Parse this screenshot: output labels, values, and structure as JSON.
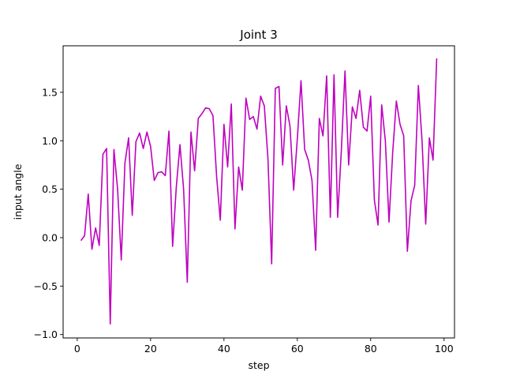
{
  "chart_data": {
    "type": "line",
    "title": "Joint 3",
    "xlabel": "step",
    "ylabel": "input angle",
    "xlim": [
      -3.85,
      102.85
    ],
    "ylim": [
      -1.035,
      1.98
    ],
    "xticks": [
      0,
      20,
      40,
      60,
      80,
      100
    ],
    "yticks": [
      -1.0,
      -0.5,
      0.0,
      0.5,
      1.0,
      1.5
    ],
    "ytick_labels": [
      "−1.0",
      "−0.5",
      "0.0",
      "0.5",
      "1.0",
      "1.5"
    ],
    "grid": false,
    "series": [
      {
        "color": "#bf00bf",
        "x": [
          1,
          2,
          3,
          4,
          5,
          6,
          7,
          8,
          9,
          10,
          11,
          12,
          13,
          14,
          15,
          16,
          17,
          18,
          19,
          20,
          21,
          22,
          23,
          24,
          25,
          26,
          27,
          28,
          29,
          30,
          31,
          32,
          33,
          34,
          35,
          36,
          37,
          38,
          39,
          40,
          41,
          42,
          43,
          44,
          45,
          46,
          47,
          48,
          49,
          50,
          51,
          52,
          53,
          54,
          55,
          56,
          57,
          58,
          59,
          60,
          61,
          62,
          63,
          64,
          65,
          66,
          67,
          68,
          69,
          70,
          71,
          72,
          73,
          74,
          75,
          76,
          77,
          78,
          79,
          80,
          81,
          82,
          83,
          84,
          85,
          86,
          87,
          88,
          89,
          90,
          91,
          92,
          93,
          94,
          95,
          96,
          97,
          98
        ],
        "y": [
          -0.03,
          0.02,
          0.45,
          -0.12,
          0.1,
          -0.08,
          0.86,
          0.92,
          -0.89,
          0.91,
          0.5,
          -0.23,
          0.77,
          1.03,
          0.23,
          0.99,
          1.08,
          0.92,
          1.09,
          0.94,
          0.59,
          0.67,
          0.68,
          0.64,
          1.1,
          -0.09,
          0.52,
          0.96,
          0.5,
          -0.46,
          1.09,
          0.69,
          1.23,
          1.28,
          1.34,
          1.33,
          1.26,
          0.63,
          0.18,
          1.17,
          0.73,
          1.38,
          0.09,
          0.73,
          0.49,
          1.44,
          1.22,
          1.25,
          1.12,
          1.46,
          1.36,
          0.81,
          -0.27,
          1.54,
          1.56,
          0.75,
          1.36,
          1.15,
          0.49,
          1.02,
          1.62,
          0.91,
          0.8,
          0.59,
          -0.13,
          1.23,
          1.05,
          1.67,
          0.21,
          1.68,
          0.21,
          0.9,
          1.72,
          0.75,
          1.35,
          1.23,
          1.52,
          1.14,
          1.1,
          1.46,
          0.39,
          0.13,
          1.37,
          1.0,
          0.16,
          0.88,
          1.41,
          1.17,
          1.05,
          -0.14,
          0.38,
          0.54,
          1.57,
          1.0,
          0.14,
          1.03,
          0.8,
          1.85
        ]
      }
    ]
  }
}
